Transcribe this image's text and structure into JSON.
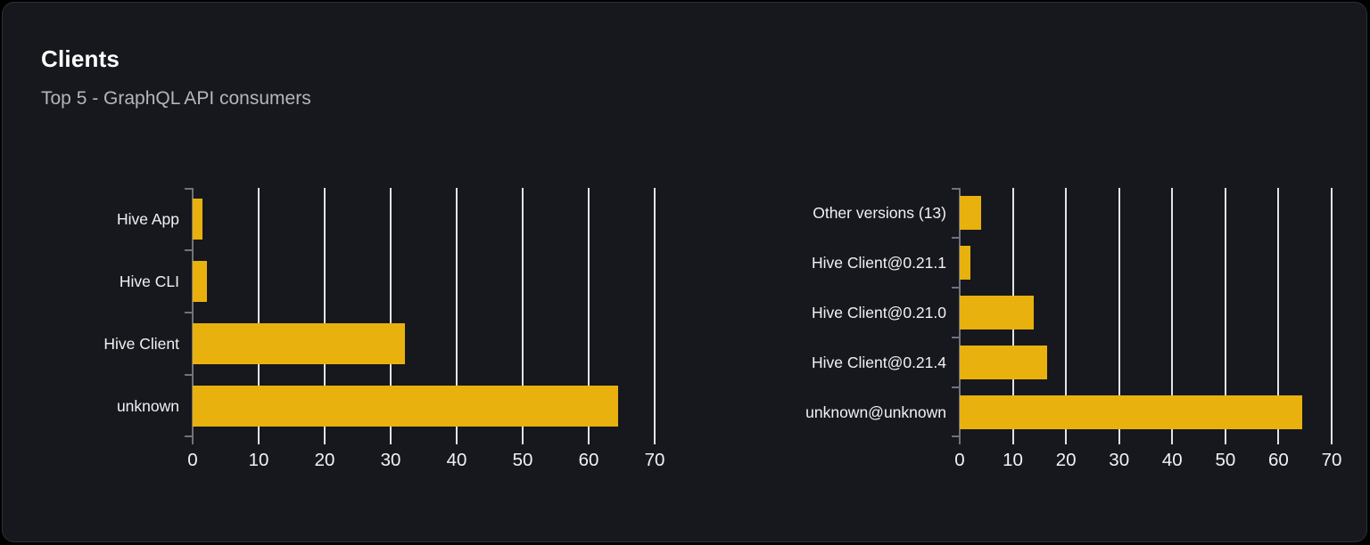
{
  "card": {
    "title": "Clients",
    "subtitle": "Top 5 - GraphQL API consumers"
  },
  "colors": {
    "page_bg": "#000000",
    "card_bg": "#16181d",
    "card_border": "#2a2e36",
    "title": "#ffffff",
    "subtitle": "#b5b5bc",
    "label": "#f2f2f4",
    "bar": "#e8b10e",
    "gridline": "#e2e2ec",
    "axis": "#72727b"
  },
  "chart_data": [
    {
      "type": "bar",
      "orientation": "horizontal",
      "name": "top-clients",
      "categories": [
        "Hive App",
        "Hive CLI",
        "Hive Client",
        "unknown"
      ],
      "values": [
        1.5,
        2.2,
        32.1,
        64.4
      ],
      "value_unit": "percent (estimated from axis)",
      "xlim": [
        0,
        70
      ],
      "xticks": [
        0,
        10,
        20,
        30,
        40,
        50,
        60,
        70
      ],
      "grid": true,
      "legend": false,
      "xlabel": "",
      "ylabel": ""
    },
    {
      "type": "bar",
      "orientation": "horizontal",
      "name": "top-client-versions",
      "categories": [
        "Other versions (13)",
        "Hive Client@0.21.1",
        "Hive Client@0.21.0",
        "Hive Client@0.21.4",
        "unknown@unknown"
      ],
      "values": [
        4.1,
        2.0,
        13.9,
        16.5,
        64.5
      ],
      "value_unit": "percent (estimated from axis)",
      "xlim": [
        0,
        70
      ],
      "xticks": [
        0,
        10,
        20,
        30,
        40,
        50,
        60,
        70
      ],
      "grid": true,
      "legend": false,
      "xlabel": "",
      "ylabel": ""
    }
  ]
}
